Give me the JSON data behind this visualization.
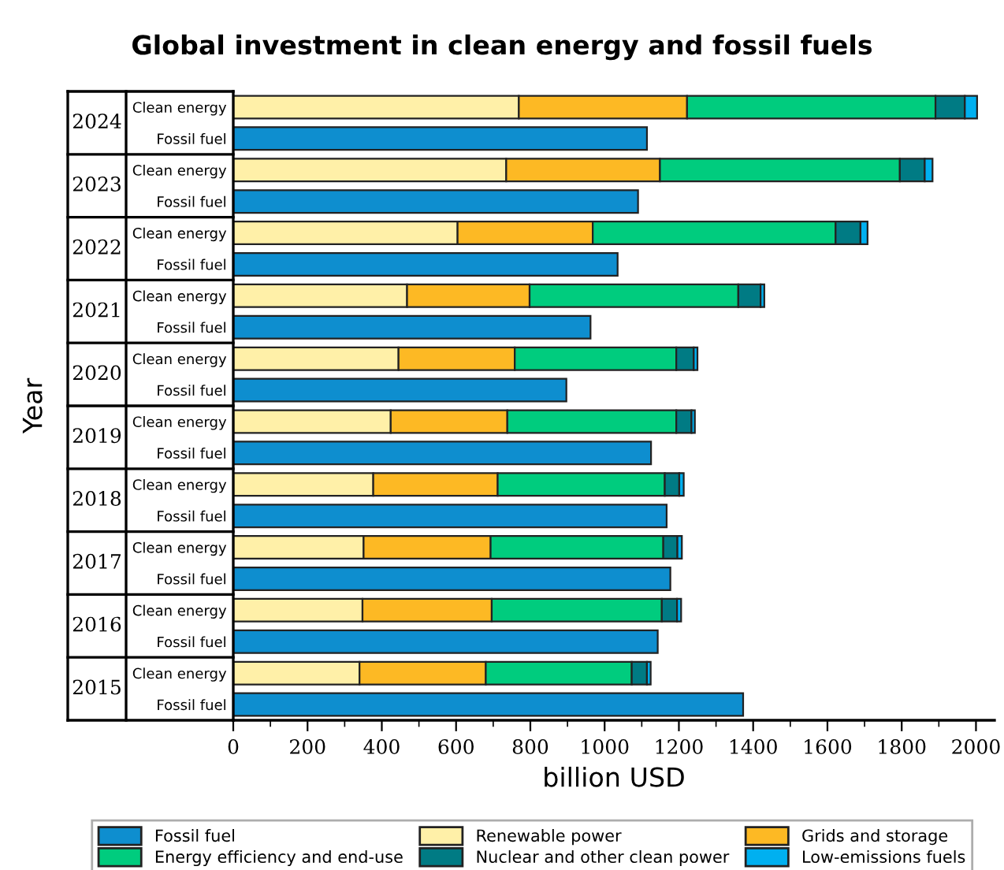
{
  "chart_data": {
    "type": "bar",
    "orientation": "horizontal",
    "stacked": true,
    "title": "Global investment in clean energy and fossil fuels",
    "xlabel": "billion USD",
    "ylabel": "Year",
    "categories": [
      "Clean energy",
      "Fossil fuel",
      "Clean energy",
      "Fossil fuel",
      "Clean energy",
      "Fossil fuel",
      "Clean energy",
      "Fossil fuel",
      "Clean energy",
      "Fossil fuel",
      "Clean energy",
      "Fossil fuel",
      "Clean energy",
      "Fossil fuel",
      "Clean energy",
      "Fossil fuel",
      "Clean energy",
      "Fossil fuel",
      "Clean energy",
      "Fossil fuel"
    ],
    "annotations": [
      "2024",
      "2023",
      "2022",
      "2021",
      "2020",
      "2019",
      "2018",
      "2017",
      "2016",
      "2015"
    ],
    "series": [
      {
        "name": "Fossil fuel",
        "color": "#0e8ecf",
        "values": [
          null,
          1114,
          null,
          1090,
          null,
          1035,
          null,
          962,
          null,
          897,
          null,
          1125,
          null,
          1167,
          null,
          1177,
          null,
          1143,
          null,
          1373
        ]
      },
      {
        "name": "Renewable power",
        "color": "#fff0a8",
        "values": [
          769,
          null,
          735,
          null,
          604,
          null,
          468,
          null,
          445,
          null,
          424,
          null,
          377,
          null,
          351,
          null,
          348,
          null,
          340,
          null
        ]
      },
      {
        "name": "Grids and storage",
        "color": "#fdb924",
        "values": [
          453,
          null,
          414,
          null,
          364,
          null,
          330,
          null,
          313,
          null,
          314,
          null,
          335,
          null,
          342,
          null,
          348,
          null,
          340,
          null
        ]
      },
      {
        "name": "Energy efficiency and end-use",
        "color": "#00cc7e",
        "values": [
          669,
          null,
          646,
          null,
          654,
          null,
          562,
          null,
          435,
          null,
          455,
          null,
          450,
          null,
          465,
          null,
          458,
          null,
          393,
          null
        ]
      },
      {
        "name": "Nuclear and other clean power",
        "color": "#007b84",
        "values": [
          79,
          null,
          67,
          null,
          67,
          null,
          60,
          null,
          47,
          null,
          41,
          null,
          39,
          null,
          38,
          null,
          41,
          null,
          41,
          null
        ]
      },
      {
        "name": "Low-emissions fuels",
        "color": "#00b0f0",
        "values": [
          33,
          null,
          21,
          null,
          19,
          null,
          10,
          null,
          10,
          null,
          9,
          null,
          12,
          null,
          12,
          null,
          11,
          null,
          10,
          null
        ]
      }
    ],
    "xlim": [
      0,
      2050
    ],
    "xticks": [
      0,
      200,
      400,
      600,
      800,
      1000,
      1200,
      1400,
      1600,
      1800,
      2000
    ],
    "grid": false,
    "legend": "bottom"
  }
}
